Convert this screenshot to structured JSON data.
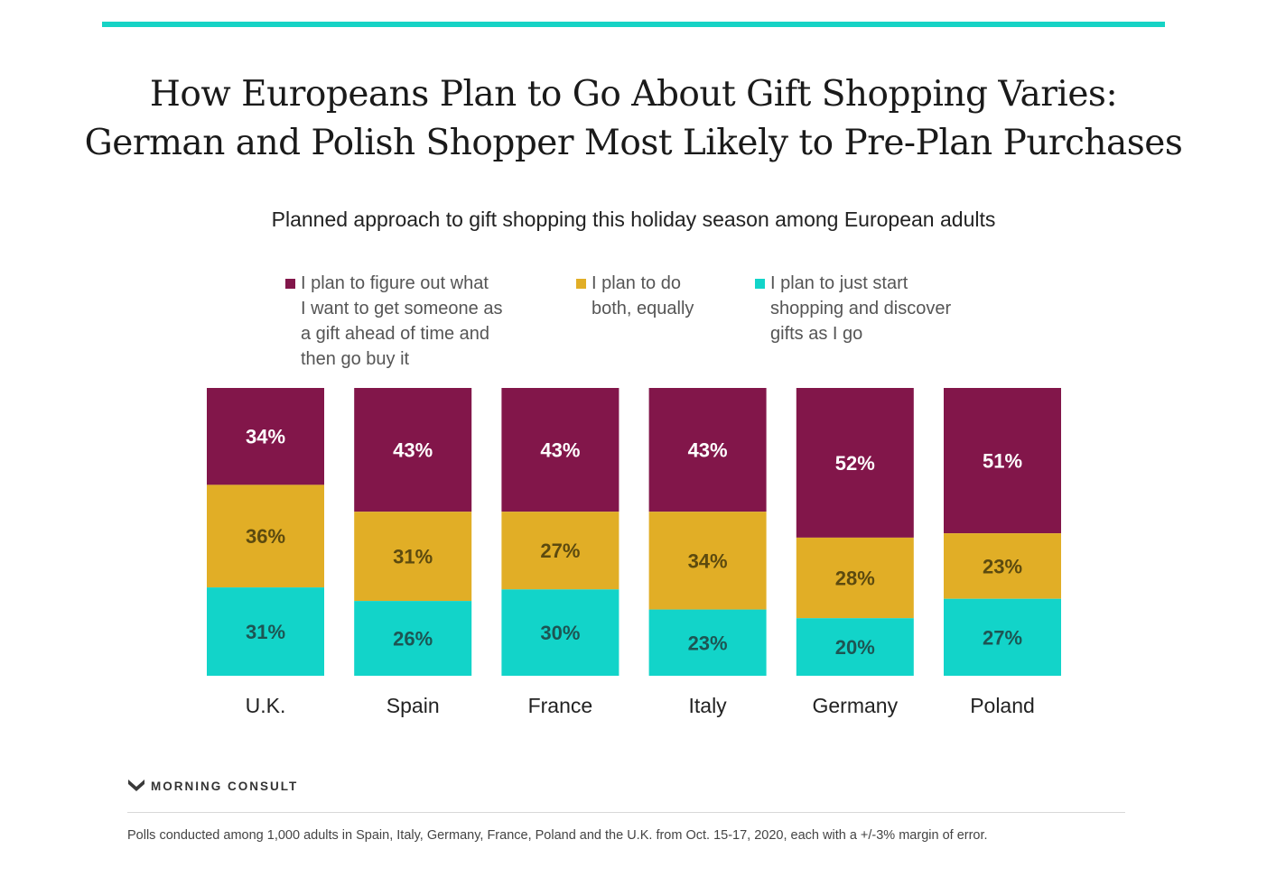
{
  "title_lines": [
    "How Europeans Plan to Go About Gift Shopping Varies:",
    "German and Polish Shopper Most Likely to Pre-Plan Purchases"
  ],
  "subtitle": "Planned approach to gift shopping this holiday season among European adults",
  "colors": {
    "accent_rule": "#16d3c5",
    "plan_ahead": "#82164a",
    "both": "#e1ae26",
    "discover": "#12d4c9",
    "label_light": "#ffffff",
    "label_dark_gold": "#5c4a0f",
    "label_dark_teal": "#1d5553"
  },
  "legend": [
    {
      "label": "I plan to figure out what\nI want to get someone as\na gift ahead of time and\nthen go buy it",
      "color": "#82164a"
    },
    {
      "label": "I plan to do\nboth, equally",
      "color": "#e1ae26"
    },
    {
      "label": "I plan to just start\nshopping and discover\ngifts as I go",
      "color": "#12d4c9"
    }
  ],
  "chart_data": {
    "type": "bar",
    "stacked": true,
    "normalized": true,
    "categories": [
      "U.K.",
      "Spain",
      "France",
      "Italy",
      "Germany",
      "Poland"
    ],
    "series": [
      {
        "name": "I plan to figure out what I want to get someone as a gift ahead of time and then go buy it",
        "values": [
          34,
          43,
          43,
          43,
          52,
          51
        ],
        "labels": [
          "34%",
          "43%",
          "43%",
          "43%",
          "52%",
          "51%"
        ]
      },
      {
        "name": "I plan to do both, equally",
        "values": [
          36,
          31,
          27,
          34,
          28,
          23
        ],
        "labels": [
          "36%",
          "31%",
          "27%",
          "34%",
          "28%",
          "23%"
        ]
      },
      {
        "name": "I plan to just start shopping and discover gifts as I go",
        "values": [
          31,
          26,
          30,
          23,
          20,
          27
        ],
        "labels": [
          "31%",
          "26%",
          "30%",
          "23%",
          "20%",
          "27%"
        ]
      }
    ],
    "legend_position": "top",
    "grid": false
  },
  "brand": "MORNING CONSULT",
  "footnote": "Polls conducted among 1,000 adults in Spain, Italy, Germany, France, Poland and the U.K. from Oct. 15-17, 2020, each with a +/-3% margin of error."
}
